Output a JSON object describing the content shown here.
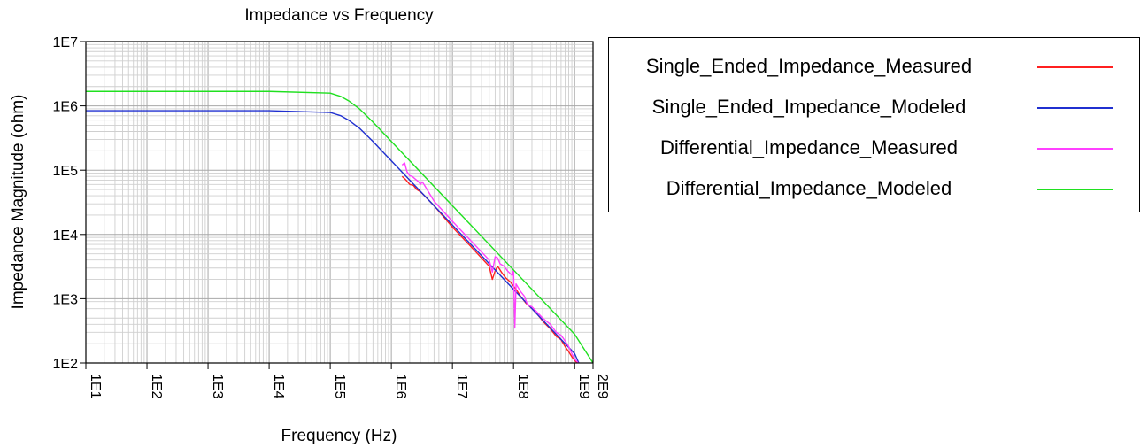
{
  "chart_data": {
    "type": "line",
    "title": "Impedance vs Frequency",
    "xlabel": "Frequency (Hz)",
    "ylabel": "Impedance Magnitude (ohm)",
    "x_scale": "log",
    "y_scale": "log",
    "xlim": [
      10,
      2000000000
    ],
    "ylim": [
      100,
      10000000
    ],
    "x_ticks": [
      {
        "value": 10,
        "label": "1E1"
      },
      {
        "value": 100,
        "label": "1E2"
      },
      {
        "value": 1000,
        "label": "1E3"
      },
      {
        "value": 10000,
        "label": "1E4"
      },
      {
        "value": 100000,
        "label": "1E5"
      },
      {
        "value": 1000000,
        "label": "1E6"
      },
      {
        "value": 10000000,
        "label": "1E7"
      },
      {
        "value": 100000000,
        "label": "1E8"
      },
      {
        "value": 1000000000,
        "label": "1E9"
      },
      {
        "value": 2000000000,
        "label": "2E9"
      }
    ],
    "y_ticks": [
      {
        "value": 100,
        "label": "1E2"
      },
      {
        "value": 1000,
        "label": "1E3"
      },
      {
        "value": 10000,
        "label": "1E4"
      },
      {
        "value": 100000,
        "label": "1E5"
      },
      {
        "value": 1000000,
        "label": "1E6"
      },
      {
        "value": 10000000,
        "label": "1E7"
      }
    ],
    "grid": true,
    "legend_position": "right",
    "series": [
      {
        "name": "Single_Ended_Impedance_Measured",
        "color": "#ff2020",
        "points": [
          [
            1500000,
            80000
          ],
          [
            1700000,
            72000
          ],
          [
            2000000,
            60000
          ],
          [
            2300000,
            58000
          ],
          [
            2600000,
            50000
          ],
          [
            3000000,
            46000
          ],
          [
            3500000,
            40000
          ],
          [
            5000000,
            28000
          ],
          [
            10000000,
            13000
          ],
          [
            20000000,
            6500
          ],
          [
            40000000,
            3200
          ],
          [
            45000000,
            2000
          ],
          [
            50000000,
            2700
          ],
          [
            55000000,
            3200
          ],
          [
            65000000,
            2500
          ],
          [
            75000000,
            2100
          ],
          [
            90000000,
            1800
          ],
          [
            110000000,
            1400
          ],
          [
            130000000,
            1100
          ],
          [
            160000000,
            850
          ],
          [
            200000000,
            700
          ],
          [
            250000000,
            560
          ],
          [
            320000000,
            420
          ],
          [
            400000000,
            340
          ],
          [
            500000000,
            260
          ],
          [
            600000000,
            230
          ],
          [
            700000000,
            180
          ],
          [
            800000000,
            150
          ],
          [
            900000000,
            125
          ],
          [
            1000000000,
            110
          ],
          [
            1100000000,
            100
          ]
        ]
      },
      {
        "name": "Single_Ended_Impedance_Modeled",
        "color": "#2030d0",
        "points": [
          [
            10,
            840000
          ],
          [
            10000,
            840000
          ],
          [
            100000,
            790000
          ],
          [
            150000,
            700000
          ],
          [
            200000,
            600000
          ],
          [
            300000,
            450000
          ],
          [
            500000,
            280000
          ],
          [
            1000000,
            140000
          ],
          [
            10000000,
            14000
          ],
          [
            100000000,
            1400
          ],
          [
            1000000000,
            140
          ],
          [
            1170000000,
            100
          ]
        ]
      },
      {
        "name": "Differential_Impedance_Measured",
        "color": "#ff40ff",
        "points": [
          [
            1500000,
            120000
          ],
          [
            1650000,
            130000
          ],
          [
            1800000,
            95000
          ],
          [
            2000000,
            82000
          ],
          [
            2200000,
            80000
          ],
          [
            2500000,
            72000
          ],
          [
            2800000,
            66000
          ],
          [
            3000000,
            60000
          ],
          [
            3200000,
            66000
          ],
          [
            3500000,
            58000
          ],
          [
            5000000,
            33000
          ],
          [
            10000000,
            16000
          ],
          [
            20000000,
            8000
          ],
          [
            40000000,
            4000
          ],
          [
            45000000,
            2600
          ],
          [
            50000000,
            4500
          ],
          [
            55000000,
            4300
          ],
          [
            60000000,
            3500
          ],
          [
            70000000,
            3200
          ],
          [
            80000000,
            2700
          ],
          [
            95000000,
            2300
          ],
          [
            100000000,
            2800
          ],
          [
            105000000,
            350
          ],
          [
            110000000,
            1700
          ],
          [
            130000000,
            1300
          ],
          [
            150000000,
            1100
          ],
          [
            170000000,
            800
          ],
          [
            200000000,
            750
          ],
          [
            250000000,
            600
          ],
          [
            300000000,
            500
          ],
          [
            400000000,
            400
          ],
          [
            500000000,
            300
          ],
          [
            600000000,
            270
          ],
          [
            700000000,
            220
          ],
          [
            800000000,
            180
          ],
          [
            900000000,
            140
          ],
          [
            1000000000,
            115
          ],
          [
            1150000000,
            100
          ]
        ]
      },
      {
        "name": "Differential_Impedance_Modeled",
        "color": "#20e020",
        "points": [
          [
            10,
            1680000
          ],
          [
            10000,
            1680000
          ],
          [
            100000,
            1580000
          ],
          [
            150000,
            1400000
          ],
          [
            200000,
            1200000
          ],
          [
            300000,
            900000
          ],
          [
            500000,
            560000
          ],
          [
            1000000,
            280000
          ],
          [
            10000000,
            28000
          ],
          [
            100000000,
            2800
          ],
          [
            1000000000,
            280
          ],
          [
            2000000000,
            100
          ]
        ]
      }
    ]
  }
}
